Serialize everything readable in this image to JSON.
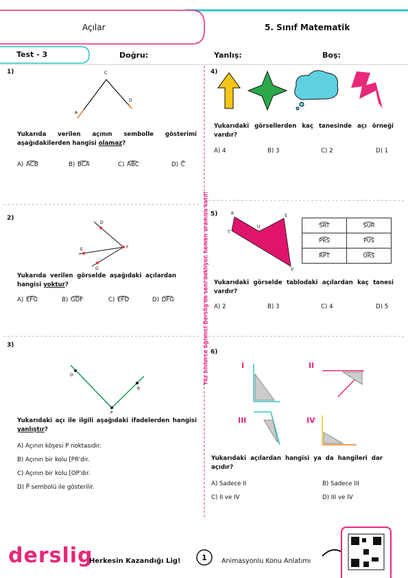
{
  "header": {
    "title": "Açılar",
    "subject": "5. Sınıf Matematik",
    "test": "Test - 3",
    "correct": "Doğru:",
    "wrong": "Yanlış:",
    "empty": "Boş:"
  },
  "side_text": "Yüz binlerce öğrenci Derslig'de seni bekliyor, hemen aramıza katıl!",
  "questions": [
    {
      "number": "1)",
      "points": [
        "C",
        "D",
        "A"
      ],
      "text": [
        "Yukarıda verilen açının sembolle gösterimi aşağıdakilerden hangisi ",
        "olamaz",
        "?"
      ],
      "options": [
        [
          "A)",
          "ACB"
        ],
        [
          "B)",
          "BCA"
        ],
        [
          "C)",
          "ABC"
        ],
        [
          "D)",
          "C"
        ]
      ]
    },
    {
      "number": "2)",
      "points": [
        "D",
        "E",
        "F",
        "G"
      ],
      "text": [
        "Yukarıda verilen görselde aşağıdaki açılardan hangisi ",
        "yoktur",
        "?"
      ],
      "options": [
        [
          "A)",
          "EFG"
        ],
        [
          "B)",
          "GDF"
        ],
        [
          "C)",
          "EFD"
        ],
        [
          "D)",
          "DFG"
        ]
      ]
    },
    {
      "number": "3)",
      "points": [
        "O",
        "P",
        "R"
      ],
      "text": [
        "Yukarıdaki açı ile ilgili aşağıdaki ifadelerden hangisi ",
        "yanlıştır",
        "?"
      ],
      "options": [
        [
          "A)",
          "Açının köşesi P noktasıdır."
        ],
        [
          "B)",
          "Açının bir kolu [PR'dir."
        ],
        [
          "C)",
          "Açının bir kolu [OP'dir."
        ],
        [
          "D)",
          "P̂ sembolü ile gösterilir."
        ]
      ]
    },
    {
      "number": "4)",
      "text": [
        "Yukarıdaki görsellerden kaç tanesinde açı örneği vardır?"
      ],
      "options": [
        [
          "A)",
          "4"
        ],
        [
          "B)",
          "3"
        ],
        [
          "C)",
          "2"
        ],
        [
          "D)",
          "1"
        ]
      ]
    },
    {
      "number": "5)",
      "points": [
        "R",
        "S",
        "T",
        "U",
        "V"
      ],
      "table": [
        [
          "SRT",
          "SUR"
        ],
        [
          "PRS",
          "PUS"
        ],
        [
          "RPT",
          "URS"
        ]
      ],
      "text": [
        "Yukarıdaki görselde tablodaki açılardan kaç tanesi vardır?"
      ],
      "options": [
        [
          "A)",
          "2"
        ],
        [
          "B)",
          "3"
        ],
        [
          "C)",
          "4"
        ],
        [
          "D)",
          "5"
        ]
      ]
    },
    {
      "number": "6)",
      "labels": [
        "I",
        "II",
        "III",
        "IV"
      ],
      "text": [
        "Yukarıdaki açılardan hangisi ya da hangileri dar açıdır?"
      ],
      "options": [
        [
          "A)",
          "Sadece II"
        ],
        [
          "B)",
          "Sadece III"
        ],
        [
          "C)",
          "II ve IV"
        ],
        [
          "D)",
          "III ve IV"
        ]
      ]
    }
  ],
  "footer": {
    "logo": "derslig",
    "slogan": "Herkesin Kazandığı Lig!",
    "page": "1",
    "link": "Animasyonlu Konu Anlatımı"
  }
}
